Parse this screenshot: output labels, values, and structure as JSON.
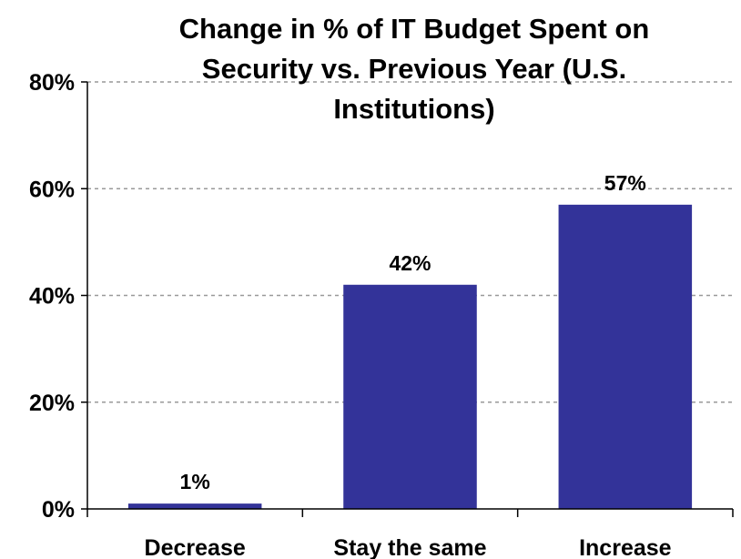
{
  "chart_data": {
    "type": "bar",
    "title_lines": [
      "Change in % of IT Budget Spent on",
      "Security vs. Previous Year (U.S.",
      "Institutions)"
    ],
    "categories": [
      "Decrease",
      "Stay the same",
      "Increase"
    ],
    "values": [
      1,
      42,
      57
    ],
    "value_labels": [
      "1%",
      "42%",
      "57%"
    ],
    "ylim": [
      0,
      80
    ],
    "yticks": [
      0,
      20,
      40,
      60,
      80
    ],
    "ytick_labels": [
      "0%",
      "20%",
      "40%",
      "60%",
      "80%"
    ],
    "grid": "horizontal dashed",
    "legend": "none",
    "colors": {
      "bar": "#333399",
      "grid": "#999999",
      "axis": "#000000"
    }
  }
}
